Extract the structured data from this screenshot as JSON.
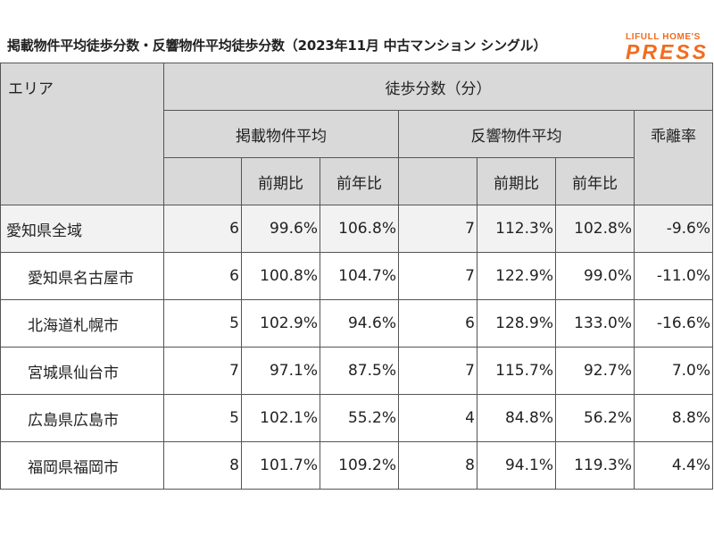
{
  "title": "掲載物件平均徒歩分数・反響物件平均徒歩分数（2023年11月 中古マンション シングル）",
  "logo": {
    "top": "LIFULL HOME'S",
    "main": "PRESS",
    "color": "#f26b1d"
  },
  "table": {
    "header": {
      "area": "エリア",
      "group": "徒歩分数（分）",
      "listing_avg": "掲載物件平均",
      "response_avg": "反響物件平均",
      "divergence": "乖離率",
      "prev_period": "前期比",
      "prev_year": "前年比"
    },
    "rows": [
      {
        "area": "愛知県全域",
        "listing": "6",
        "l_prev_period": "99.6%",
        "l_prev_year": "106.8%",
        "response": "7",
        "r_prev_period": "112.3%",
        "r_prev_year": "102.8%",
        "divergence": "-9.6%"
      },
      {
        "area": "愛知県名古屋市",
        "listing": "6",
        "l_prev_period": "100.8%",
        "l_prev_year": "104.7%",
        "response": "7",
        "r_prev_period": "122.9%",
        "r_prev_year": "99.0%",
        "divergence": "-11.0%"
      },
      {
        "area": "北海道札幌市",
        "listing": "5",
        "l_prev_period": "102.9%",
        "l_prev_year": "94.6%",
        "response": "6",
        "r_prev_period": "128.9%",
        "r_prev_year": "133.0%",
        "divergence": "-16.6%"
      },
      {
        "area": "宮城県仙台市",
        "listing": "7",
        "l_prev_period": "97.1%",
        "l_prev_year": "87.5%",
        "response": "7",
        "r_prev_period": "115.7%",
        "r_prev_year": "92.7%",
        "divergence": "7.0%"
      },
      {
        "area": "広島県広島市",
        "listing": "5",
        "l_prev_period": "102.1%",
        "l_prev_year": "55.2%",
        "response": "4",
        "r_prev_period": "84.8%",
        "r_prev_year": "56.2%",
        "divergence": "8.8%"
      },
      {
        "area": "福岡県福岡市",
        "listing": "8",
        "l_prev_period": "101.7%",
        "l_prev_year": "109.2%",
        "response": "8",
        "r_prev_period": "94.1%",
        "r_prev_year": "119.3%",
        "divergence": "4.4%"
      }
    ]
  }
}
